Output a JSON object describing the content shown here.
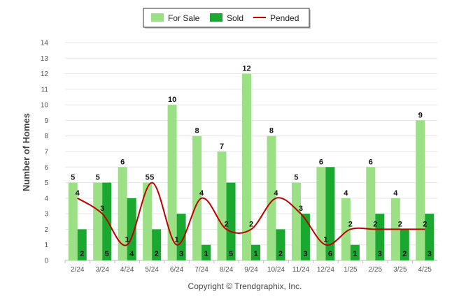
{
  "chart_data": {
    "type": "bar",
    "categories": [
      "2/24",
      "3/24",
      "4/24",
      "5/24",
      "6/24",
      "7/24",
      "8/24",
      "9/24",
      "10/24",
      "11/24",
      "12/24",
      "1/25",
      "2/25",
      "3/25",
      "4/25"
    ],
    "series": [
      {
        "name": "For Sale",
        "type": "bar",
        "color": "#9be085",
        "values": [
          5,
          5,
          6,
          5,
          10,
          8,
          7,
          12,
          8,
          5,
          6,
          4,
          6,
          4,
          9
        ]
      },
      {
        "name": "Sold",
        "type": "bar",
        "color": "#1aa830",
        "values": [
          2,
          5,
          4,
          2,
          3,
          1,
          5,
          1,
          2,
          3,
          6,
          1,
          3,
          2,
          3
        ]
      },
      {
        "name": "Pended",
        "type": "line",
        "color": "#c00000",
        "values": [
          4,
          3,
          1,
          5,
          1,
          4,
          2,
          2,
          4,
          3,
          1,
          2,
          2,
          2,
          2
        ]
      }
    ],
    "ylabel": "Number of Homes",
    "xlabel": "",
    "ylim": [
      0,
      14
    ],
    "yticks": [
      0,
      1,
      2,
      3,
      4,
      5,
      6,
      7,
      8,
      9,
      10,
      11,
      12,
      13,
      14
    ],
    "grid": true,
    "legend_position": "top-center"
  },
  "footer": "Copyright © Trendgraphix, Inc."
}
